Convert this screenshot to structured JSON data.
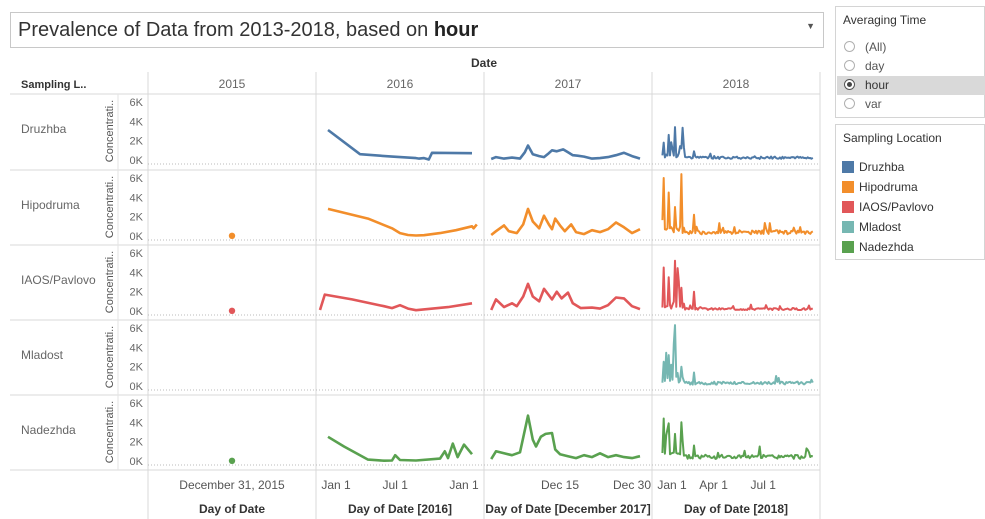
{
  "title": {
    "prefix": "Prevalence of Data from 2013-2018, based on ",
    "bold": "hour",
    "dropdown_icon": "triangle-down"
  },
  "averaging_time": {
    "title": "Averaging Time",
    "options": [
      "(All)",
      "day",
      "hour",
      "var"
    ],
    "selected": "hour"
  },
  "sampling_location_legend": {
    "title": "Sampling Location",
    "items": [
      {
        "label": "Druzhba",
        "color": "#4e79a7"
      },
      {
        "label": "Hipodruma",
        "color": "#f28e2b"
      },
      {
        "label": "IAOS/Pavlovo",
        "color": "#e15759"
      },
      {
        "label": "Mladost",
        "color": "#76b7b2"
      },
      {
        "label": "Nadezhda",
        "color": "#59a14f"
      }
    ]
  },
  "chart_data": {
    "type": "line",
    "column_header_title": "Date",
    "row_header_title": "Sampling L..",
    "y_axis_label": "Concentrati..",
    "y_ticks": [
      "0K",
      "2K",
      "4K",
      "6K"
    ],
    "ylim": [
      0,
      6500
    ],
    "columns": [
      {
        "year": "2015",
        "footer": "Day of Date",
        "tick_labels": [
          {
            "label": "December 31, 2015",
            "t": 0.5
          }
        ]
      },
      {
        "year": "2016",
        "footer": "Day of Date [2016]",
        "tick_labels": [
          {
            "label": "Jan 1",
            "t": 0.1
          },
          {
            "label": "Jul 1",
            "t": 0.47
          },
          {
            "label": "Jan 1",
            "t": 0.9
          }
        ]
      },
      {
        "year": "2017",
        "footer": "Day of Date [December 2017]",
        "tick_labels": [
          {
            "label": "Dec 15",
            "t": 0.45
          },
          {
            "label": "Dec 30",
            "t": 0.9
          }
        ]
      },
      {
        "year": "2018",
        "footer": "Day of Date [2018]",
        "tick_labels": [
          {
            "label": "Jan 1",
            "t": 0.1
          },
          {
            "label": "Apr 1",
            "t": 0.36
          },
          {
            "label": "Jul 1",
            "t": 0.67
          }
        ]
      }
    ],
    "series": [
      {
        "name": "Druzhba",
        "color": "#4e79a7",
        "cells": [
          {
            "dot": null
          },
          {
            "points": [
              [
                0.05,
                3100
              ],
              [
                0.25,
                600
              ],
              [
                0.45,
                350
              ],
              [
                0.6,
                200
              ],
              [
                0.62,
                150
              ],
              [
                0.65,
                200
              ],
              [
                0.68,
                50
              ],
              [
                0.7,
                750
              ],
              [
                0.95,
                700
              ]
            ]
          },
          {
            "points": [
              [
                0.02,
                100
              ],
              [
                0.05,
                300
              ],
              [
                0.1,
                150
              ],
              [
                0.15,
                250
              ],
              [
                0.2,
                150
              ],
              [
                0.23,
                800
              ],
              [
                0.25,
                1500
              ],
              [
                0.28,
                600
              ],
              [
                0.32,
                400
              ],
              [
                0.35,
                300
              ],
              [
                0.38,
                700
              ],
              [
                0.4,
                1000
              ],
              [
                0.43,
                900
              ],
              [
                0.47,
                1100
              ],
              [
                0.5,
                800
              ],
              [
                0.53,
                500
              ],
              [
                0.56,
                450
              ],
              [
                0.6,
                350
              ],
              [
                0.65,
                150
              ],
              [
                0.7,
                200
              ],
              [
                0.75,
                300
              ],
              [
                0.8,
                500
              ],
              [
                0.85,
                750
              ],
              [
                0.9,
                400
              ],
              [
                0.95,
                150
              ]
            ]
          },
          {
            "spiky": true,
            "seed": 1,
            "peaks": [
              1800,
              2600,
              3400,
              1200,
              900
            ],
            "base": 350,
            "tail": 280
          }
        ]
      },
      {
        "name": "Hipodruma",
        "color": "#f28e2b",
        "cells": [
          {
            "dot": 20
          },
          {
            "points": [
              [
                0.05,
                2800
              ],
              [
                0.3,
                1800
              ],
              [
                0.45,
                800
              ],
              [
                0.5,
                300
              ],
              [
                0.55,
                100
              ],
              [
                0.6,
                50
              ],
              [
                0.65,
                80
              ],
              [
                0.75,
                300
              ],
              [
                0.85,
                600
              ],
              [
                0.95,
                1000
              ],
              [
                0.96,
                800
              ],
              [
                0.98,
                1200
              ]
            ]
          },
          {
            "points": [
              [
                0.02,
                100
              ],
              [
                0.05,
                500
              ],
              [
                0.1,
                1100
              ],
              [
                0.13,
                500
              ],
              [
                0.18,
                300
              ],
              [
                0.22,
                1200
              ],
              [
                0.25,
                2800
              ],
              [
                0.28,
                1500
              ],
              [
                0.32,
                800
              ],
              [
                0.35,
                2100
              ],
              [
                0.38,
                1200
              ],
              [
                0.4,
                700
              ],
              [
                0.42,
                1800
              ],
              [
                0.45,
                1100
              ],
              [
                0.48,
                500
              ],
              [
                0.52,
                1200
              ],
              [
                0.55,
                400
              ],
              [
                0.6,
                200
              ],
              [
                0.65,
                600
              ],
              [
                0.7,
                400
              ],
              [
                0.75,
                700
              ],
              [
                0.8,
                1400
              ],
              [
                0.85,
                900
              ],
              [
                0.9,
                300
              ],
              [
                0.95,
                700
              ]
            ]
          },
          {
            "spiky": true,
            "seed": 2,
            "peaks": [
              6000,
              4500,
              3000,
              6400,
              2200
            ],
            "base": 500,
            "tail": 450
          }
        ]
      },
      {
        "name": "IAOS/Pavlovo",
        "color": "#e15759",
        "cells": [
          {
            "dot": 20
          },
          {
            "points": [
              [
                0.0,
                100
              ],
              [
                0.03,
                1700
              ],
              [
                0.2,
                1200
              ],
              [
                0.4,
                500
              ],
              [
                0.45,
                300
              ],
              [
                0.5,
                600
              ],
              [
                0.55,
                250
              ],
              [
                0.6,
                80
              ],
              [
                0.8,
                400
              ],
              [
                0.95,
                800
              ]
            ]
          },
          {
            "points": [
              [
                0.02,
                100
              ],
              [
                0.05,
                1200
              ],
              [
                0.1,
                400
              ],
              [
                0.15,
                800
              ],
              [
                0.18,
                500
              ],
              [
                0.22,
                1500
              ],
              [
                0.25,
                2800
              ],
              [
                0.28,
                1500
              ],
              [
                0.32,
                1000
              ],
              [
                0.35,
                2300
              ],
              [
                0.4,
                1200
              ],
              [
                0.43,
                2000
              ],
              [
                0.46,
                1300
              ],
              [
                0.5,
                1900
              ],
              [
                0.53,
                800
              ],
              [
                0.58,
                300
              ],
              [
                0.65,
                350
              ],
              [
                0.7,
                250
              ],
              [
                0.75,
                600
              ],
              [
                0.8,
                1400
              ],
              [
                0.85,
                1300
              ],
              [
                0.9,
                500
              ],
              [
                0.95,
                200
              ]
            ]
          },
          {
            "spiky": true,
            "seed": 3,
            "peaks": [
              4500,
              3500,
              5200,
              2400,
              2000
            ],
            "base": 400,
            "tail": 250
          }
        ]
      },
      {
        "name": "Mladost",
        "color": "#76b7b2",
        "cells": [
          {
            "dot": null
          },
          {
            "points": []
          },
          {
            "points": []
          },
          {
            "spiky": true,
            "seed": 4,
            "peaks": [
              2500,
              3200,
              6300,
              2000,
              1400
            ],
            "base": 500,
            "tail": 350
          }
        ]
      },
      {
        "name": "Nadezhda",
        "color": "#59a14f",
        "cells": [
          {
            "dot": 20
          },
          {
            "points": [
              [
                0.05,
                2500
              ],
              [
                0.15,
                1500
              ],
              [
                0.3,
                150
              ],
              [
                0.4,
                30
              ],
              [
                0.45,
                50
              ],
              [
                0.47,
                600
              ],
              [
                0.5,
                100
              ],
              [
                0.6,
                50
              ],
              [
                0.75,
                250
              ],
              [
                0.78,
                1000
              ],
              [
                0.8,
                300
              ],
              [
                0.83,
                1800
              ],
              [
                0.86,
                400
              ],
              [
                0.9,
                1700
              ],
              [
                0.95,
                700
              ]
            ]
          },
          {
            "points": [
              [
                0.02,
                200
              ],
              [
                0.05,
                1000
              ],
              [
                0.1,
                800
              ],
              [
                0.15,
                600
              ],
              [
                0.2,
                900
              ],
              [
                0.25,
                4700
              ],
              [
                0.28,
                2200
              ],
              [
                0.3,
                1500
              ],
              [
                0.33,
                2500
              ],
              [
                0.36,
                2800
              ],
              [
                0.4,
                2900
              ],
              [
                0.42,
                1200
              ],
              [
                0.45,
                700
              ],
              [
                0.5,
                500
              ],
              [
                0.55,
                300
              ],
              [
                0.6,
                600
              ],
              [
                0.65,
                400
              ],
              [
                0.7,
                800
              ],
              [
                0.75,
                400
              ],
              [
                0.8,
                600
              ],
              [
                0.85,
                400
              ],
              [
                0.9,
                300
              ],
              [
                0.95,
                500
              ]
            ]
          },
          {
            "spiky": true,
            "seed": 5,
            "peaks": [
              4400,
              3900,
              2800,
              4000,
              1600
            ],
            "base": 450,
            "tail": 500
          }
        ]
      }
    ]
  }
}
